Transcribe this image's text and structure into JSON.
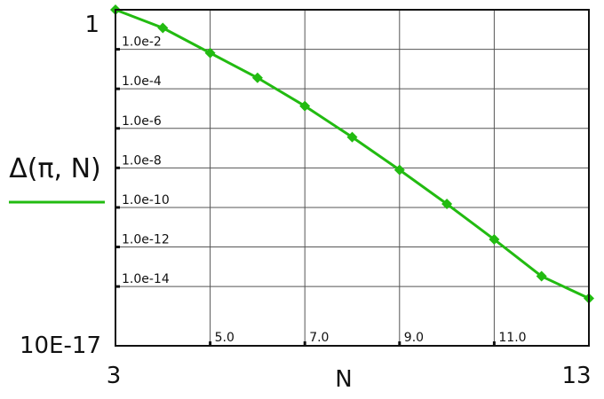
{
  "chart_data": {
    "type": "line",
    "xlabel": "N",
    "ylabel": "Δ(π, N)",
    "xlim": [
      3,
      13
    ],
    "ylim": [
      1e-17,
      1
    ],
    "y_scale": "log",
    "grid": true,
    "x_axis_end_labels": [
      "3",
      "13"
    ],
    "y_axis_end_labels": [
      "10E-17",
      "1"
    ],
    "x_tick_values": [
      5,
      7,
      9,
      11
    ],
    "x_tick_labels": [
      "5.0",
      "7.0",
      "9.0",
      "11.0"
    ],
    "y_tick_values": [
      0.01,
      0.0001,
      1e-06,
      1e-08,
      1e-10,
      1e-12,
      1e-14
    ],
    "y_tick_labels": [
      "1.0e-2",
      "1.0e-4",
      "1.0e-6",
      "1.0e-8",
      "1.0e-10",
      "1.0e-12",
      "1.0e-14"
    ],
    "series": [
      {
        "color": "#22bb11",
        "marker": "diamond",
        "x": [
          3,
          4,
          5,
          6,
          7,
          8,
          9,
          10,
          11,
          12,
          13
        ],
        "y": [
          1,
          0.12,
          0.0065,
          0.00036,
          1.35e-05,
          3.6e-07,
          7.9e-09,
          1.5e-10,
          2.4e-12,
          3.3e-14,
          2.5e-15
        ]
      }
    ]
  }
}
